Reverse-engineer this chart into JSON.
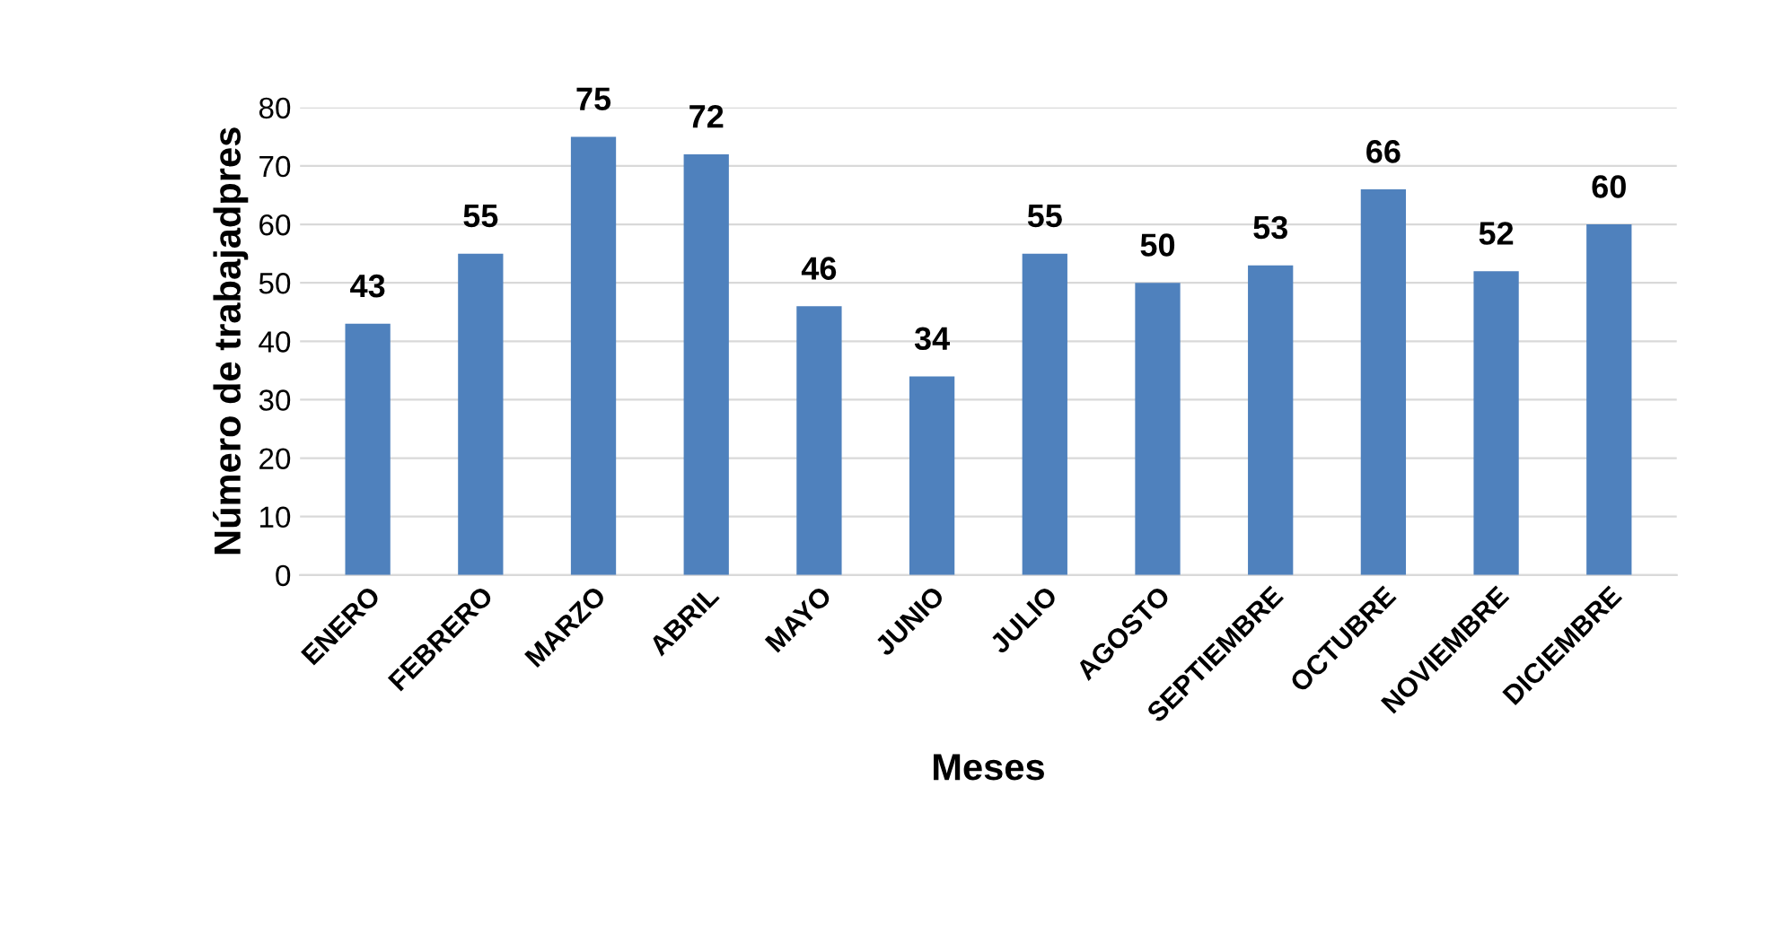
{
  "chart_data": {
    "type": "bar",
    "xlabel": "Meses",
    "ylabel": "Número de trabajadpres",
    "categories": [
      "ENERO",
      "FEBRERO",
      "MARZO",
      "ABRIL",
      "MAYO",
      "JUNIO",
      "JULIO",
      "AGOSTO",
      "SEPTIEMBRE",
      "OCTUBRE",
      "NOVIEMBRE",
      "DICIEMBRE"
    ],
    "values": [
      43,
      55,
      75,
      72,
      46,
      34,
      55,
      50,
      53,
      66,
      52,
      60
    ],
    "color": "#4f81bd",
    "ylim": [
      0,
      80
    ],
    "yticks": [
      0,
      10,
      20,
      30,
      40,
      50,
      60,
      70,
      80
    ],
    "grid": "y",
    "data_labels": true
  }
}
